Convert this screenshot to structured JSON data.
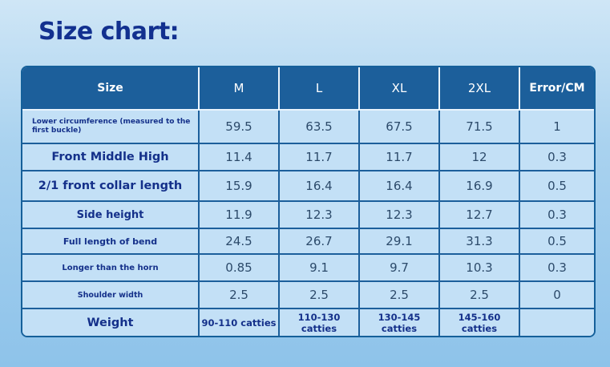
{
  "title": "Size chart:",
  "headers": [
    "Size",
    "M",
    "L",
    "XL",
    "2XL",
    "Error/CM"
  ],
  "rows": [
    {
      "label": "Lower circumference (measured to the first buckle)",
      "values": [
        "59.5",
        "63.5",
        "67.5",
        "71.5",
        "1"
      ]
    },
    {
      "label": "Front Middle High",
      "values": [
        "11.4",
        "11.7",
        "11.7",
        "12",
        "0.3"
      ]
    },
    {
      "label": "2/1 front collar length",
      "values": [
        "15.9",
        "16.4",
        "16.4",
        "16.9",
        "0.5"
      ]
    },
    {
      "label": "Side height",
      "values": [
        "11.9",
        "12.3",
        "12.3",
        "12.7",
        "0.3"
      ]
    },
    {
      "label": "Full length of bend",
      "values": [
        "24.5",
        "26.7",
        "29.1",
        "31.3",
        "0.5"
      ]
    },
    {
      "label": "Longer than the horn",
      "values": [
        "0.85",
        "9.1",
        "9.7",
        "10.3",
        "0.3"
      ]
    },
    {
      "label": "Shoulder width",
      "values": [
        "2.5",
        "2.5",
        "2.5",
        "2.5",
        "0"
      ]
    }
  ],
  "weight_row": {
    "label": "Weight",
    "values": [
      "90-110 catties",
      "110-130 catties",
      "130-145 catties",
      "145-160 catties",
      ""
    ]
  }
}
